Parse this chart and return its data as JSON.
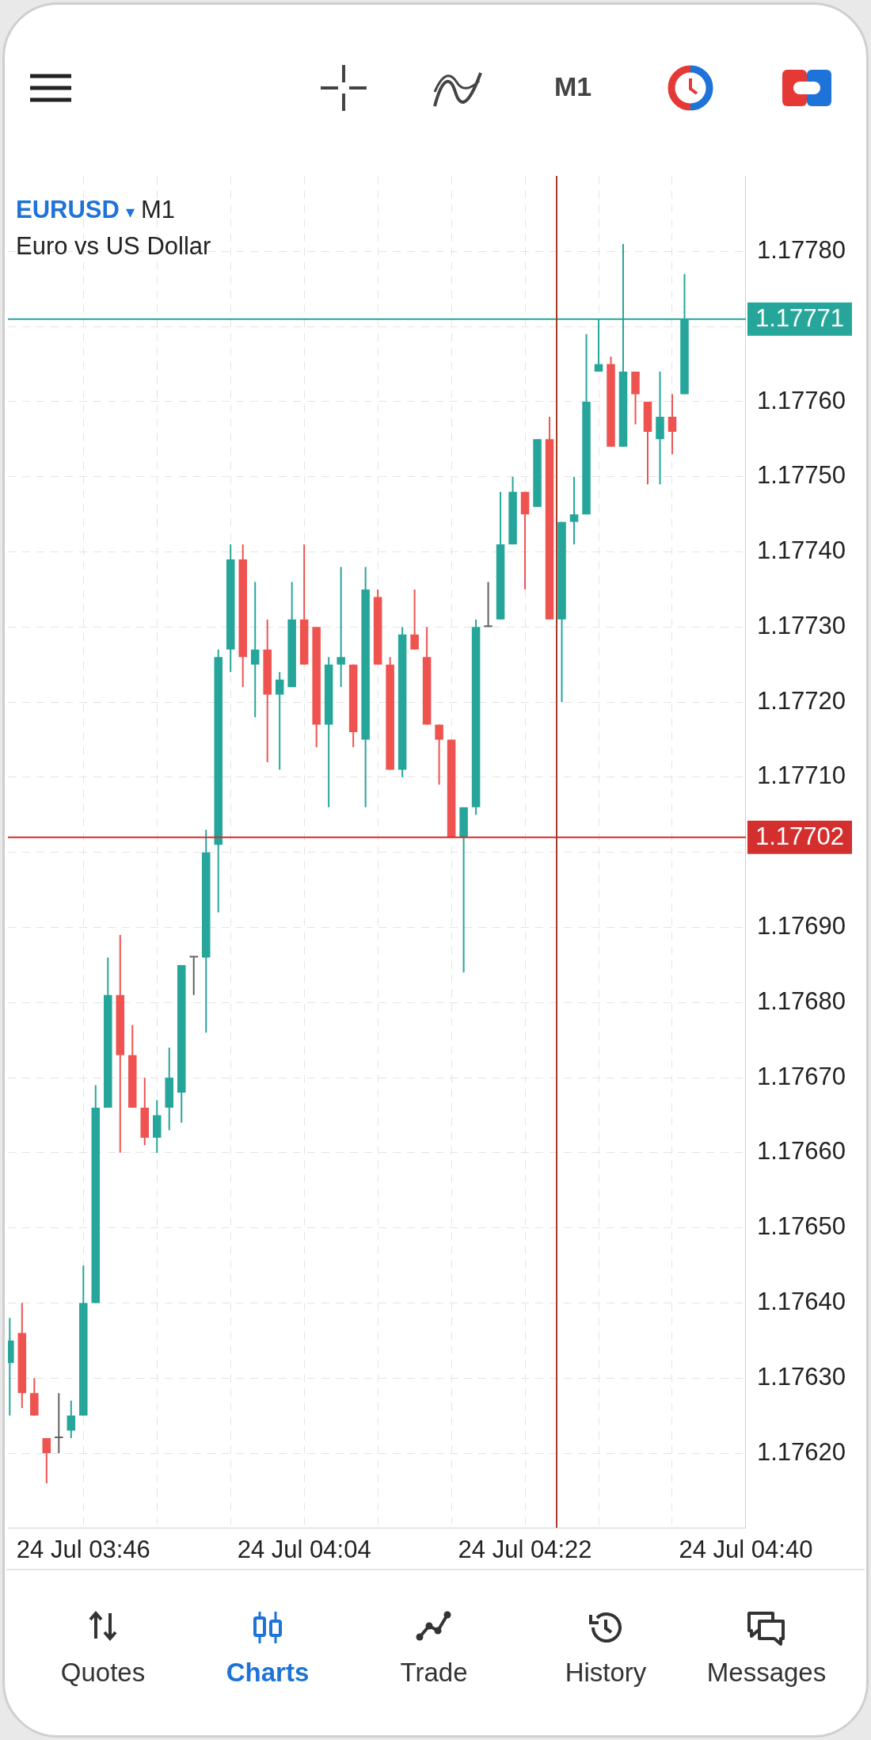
{
  "chart_data": {
    "type": "candlestick",
    "title": "EURUSD ▾ M1",
    "subtitle": "Euro vs US Dollar",
    "categories": [
      null,
      null,
      null,
      null,
      null,
      null,
      "24 Jul 03:46",
      null,
      null,
      null,
      null,
      null,
      null,
      null,
      null,
      null,
      null,
      null,
      null,
      null,
      null,
      null,
      null,
      null,
      "24 Jul 04:04",
      null,
      null,
      null,
      null,
      null,
      null,
      null,
      null,
      null,
      null,
      null,
      null,
      null,
      null,
      null,
      null,
      null,
      "24 Jul 04:22",
      null,
      null,
      null,
      null,
      null,
      null,
      null,
      null,
      null,
      null,
      null,
      null,
      null,
      null,
      null,
      null,
      null,
      "24 Jul 04:40"
    ],
    "ohlc": [
      [
        1.17632,
        1.17638,
        1.17625,
        1.17635
      ],
      [
        1.17636,
        1.1764,
        1.17626,
        1.17628
      ],
      [
        1.17628,
        1.1763,
        1.17625,
        1.17625
      ],
      [
        1.17622,
        1.17622,
        1.17616,
        1.1762
      ],
      [
        1.17622,
        1.17628,
        1.1762,
        1.17622
      ],
      [
        1.17623,
        1.17627,
        1.17622,
        1.17625
      ],
      [
        1.17625,
        1.17645,
        1.17625,
        1.1764
      ],
      [
        1.1764,
        1.17669,
        1.1764,
        1.17666
      ],
      [
        1.17666,
        1.17686,
        1.17666,
        1.17681
      ],
      [
        1.17681,
        1.17689,
        1.1766,
        1.17673
      ],
      [
        1.17673,
        1.17677,
        1.17666,
        1.17666
      ],
      [
        1.17666,
        1.1767,
        1.17661,
        1.17662
      ],
      [
        1.17662,
        1.17667,
        1.1766,
        1.17665
      ],
      [
        1.17666,
        1.17674,
        1.17663,
        1.1767
      ],
      [
        1.17668,
        1.17685,
        1.17664,
        1.17685
      ],
      [
        1.17686,
        1.17686,
        1.17681,
        1.17686
      ],
      [
        1.17686,
        1.17703,
        1.17676,
        1.177
      ],
      [
        1.17701,
        1.17727,
        1.17692,
        1.17726
      ],
      [
        1.17727,
        1.17741,
        1.17724,
        1.17739
      ],
      [
        1.17739,
        1.17741,
        1.17722,
        1.17726
      ],
      [
        1.17725,
        1.17736,
        1.17718,
        1.17727
      ],
      [
        1.17727,
        1.17731,
        1.17712,
        1.17721
      ],
      [
        1.17721,
        1.17724,
        1.17711,
        1.17723
      ],
      [
        1.17722,
        1.17736,
        1.17722,
        1.17731
      ],
      [
        1.17731,
        1.17741,
        1.17725,
        1.17725
      ],
      [
        1.1773,
        1.1773,
        1.17714,
        1.17717
      ],
      [
        1.17717,
        1.17726,
        1.17706,
        1.17725
      ],
      [
        1.17725,
        1.17738,
        1.17722,
        1.17726
      ],
      [
        1.17725,
        1.17725,
        1.17714,
        1.17716
      ],
      [
        1.17715,
        1.17738,
        1.17706,
        1.17735
      ],
      [
        1.17734,
        1.17735,
        1.17725,
        1.17725
      ],
      [
        1.17725,
        1.17726,
        1.17711,
        1.17711
      ],
      [
        1.17711,
        1.1773,
        1.1771,
        1.17729
      ],
      [
        1.17729,
        1.17735,
        1.17727,
        1.17727
      ],
      [
        1.17726,
        1.1773,
        1.17717,
        1.17717
      ],
      [
        1.17717,
        1.17717,
        1.17709,
        1.17715
      ],
      [
        1.17715,
        1.17715,
        1.17702,
        1.17702
      ],
      [
        1.17702,
        1.17706,
        1.17684,
        1.17706
      ],
      [
        1.17706,
        1.17731,
        1.17705,
        1.1773
      ],
      [
        1.1773,
        1.17736,
        1.1773,
        1.1773
      ],
      [
        1.17731,
        1.17748,
        1.17731,
        1.17741
      ],
      [
        1.17741,
        1.1775,
        1.17741,
        1.17748
      ],
      [
        1.17748,
        1.17748,
        1.17735,
        1.17745
      ],
      [
        1.17746,
        1.17755,
        1.17746,
        1.17755
      ],
      [
        1.17755,
        1.17758,
        1.17731,
        1.17731
      ],
      [
        1.17731,
        1.17744,
        1.1772,
        1.17744
      ],
      [
        1.17744,
        1.1775,
        1.17741,
        1.17745
      ],
      [
        1.17745,
        1.17769,
        1.17745,
        1.1776
      ],
      [
        1.17764,
        1.17771,
        1.17764,
        1.17765
      ],
      [
        1.17765,
        1.17766,
        1.17754,
        1.17754
      ],
      [
        1.17754,
        1.17781,
        1.17754,
        1.17764
      ],
      [
        1.17764,
        1.17764,
        1.17757,
        1.17761
      ],
      [
        1.1776,
        1.1776,
        1.17749,
        1.17756
      ],
      [
        1.17755,
        1.17764,
        1.17749,
        1.17758
      ],
      [
        1.17758,
        1.17761,
        1.17753,
        1.17756
      ],
      [
        1.17761,
        1.17777,
        1.17761,
        1.17771
      ],
      null,
      null,
      null,
      null,
      null
    ],
    "colors": [
      "#26a69a",
      "#ef5350",
      "#ef5350",
      "#ef5350",
      "#616161",
      "#26a69a",
      "#26a69a",
      "#26a69a",
      "#26a69a",
      "#ef5350",
      "#ef5350",
      "#ef5350",
      "#26a69a",
      "#26a69a",
      "#26a69a",
      "#616161",
      "#26a69a",
      "#26a69a",
      "#26a69a",
      "#ef5350",
      "#26a69a",
      "#ef5350",
      "#26a69a",
      "#26a69a",
      "#ef5350",
      "#ef5350",
      "#26a69a",
      "#26a69a",
      "#ef5350",
      "#26a69a",
      "#ef5350",
      "#ef5350",
      "#26a69a",
      "#ef5350",
      "#ef5350",
      "#ef5350",
      "#ef5350",
      "#26a69a",
      "#26a69a",
      "#616161",
      "#26a69a",
      "#26a69a",
      "#ef5350",
      "#26a69a",
      "#ef5350",
      "#26a69a",
      "#26a69a",
      "#26a69a",
      "#26a69a",
      "#ef5350",
      "#26a69a",
      "#ef5350",
      "#ef5350",
      "#26a69a",
      "#ef5350",
      "#26a69a",
      null,
      null,
      null,
      null,
      null
    ],
    "ylim": [
      1.1761,
      1.1779
    ],
    "yticks": [
      {
        "value": 1.1762,
        "label": "1.17620"
      },
      {
        "value": 1.1763,
        "label": "1.17630"
      },
      {
        "value": 1.1764,
        "label": "1.17640"
      },
      {
        "value": 1.1765,
        "label": "1.17650"
      },
      {
        "value": 1.1766,
        "label": "1.17660"
      },
      {
        "value": 1.1767,
        "label": "1.17670"
      },
      {
        "value": 1.1768,
        "label": "1.17680"
      },
      {
        "value": 1.1769,
        "label": "1.17690"
      },
      {
        "value": 1.177,
        "label": null
      },
      {
        "value": 1.1771,
        "label": "1.17710"
      },
      {
        "value": 1.1772,
        "label": "1.17720"
      },
      {
        "value": 1.1773,
        "label": "1.17730"
      },
      {
        "value": 1.1774,
        "label": "1.17740"
      },
      {
        "value": 1.1775,
        "label": "1.17750"
      },
      {
        "value": 1.1776,
        "label": "1.17760"
      },
      {
        "value": 1.1777,
        "label": null
      },
      {
        "value": 1.1778,
        "label": "1.17780"
      }
    ],
    "grid": true,
    "ref_lines": [
      {
        "axis": "y",
        "value": 1.17771,
        "label": "1.17771",
        "color": "#26a69a"
      },
      {
        "axis": "y",
        "value": 1.17702,
        "label": "1.17702",
        "color": "#d32f2f"
      }
    ],
    "annotations": [
      "M1",
      "Quotes",
      "Charts",
      "Trade",
      "History",
      "Messages"
    ]
  }
}
